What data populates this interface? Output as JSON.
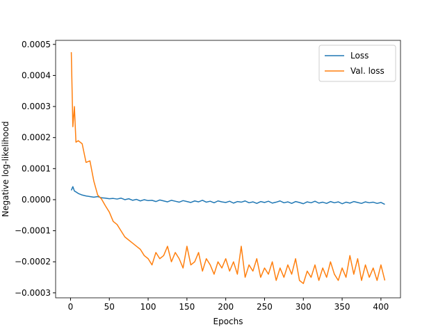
{
  "chart_data": {
    "type": "line",
    "x_label": "Epochs",
    "y_label": "Negative log-likelihood",
    "x": [
      1,
      3,
      5,
      7,
      10,
      15,
      20,
      25,
      30,
      35,
      40,
      45,
      50,
      55,
      60,
      65,
      70,
      75,
      80,
      85,
      90,
      95,
      100,
      105,
      110,
      115,
      120,
      125,
      130,
      135,
      140,
      145,
      150,
      155,
      160,
      165,
      170,
      175,
      180,
      185,
      190,
      195,
      200,
      205,
      210,
      215,
      220,
      225,
      230,
      235,
      240,
      245,
      250,
      255,
      260,
      265,
      270,
      275,
      280,
      285,
      290,
      295,
      300,
      305,
      310,
      315,
      320,
      325,
      330,
      335,
      340,
      345,
      350,
      355,
      360,
      365,
      370,
      375,
      380,
      385,
      390,
      395,
      400,
      405
    ],
    "series": [
      {
        "name": "Loss",
        "color": "#1f77b4",
        "values": [
          3e-05,
          4.2e-05,
          2.8e-05,
          2.5e-05,
          2e-05,
          1.5e-05,
          1.2e-05,
          1e-05,
          8e-06,
          1e-05,
          6e-06,
          5e-06,
          3e-06,
          4e-06,
          2e-06,
          5e-06,
          0,
          3e-06,
          -2e-06,
          1e-06,
          -4e-06,
          0,
          -3e-06,
          -2e-06,
          -6e-06,
          -1e-06,
          -4e-06,
          -7e-06,
          -2e-06,
          -5e-06,
          -8e-06,
          -3e-06,
          -6e-06,
          -9e-06,
          -4e-06,
          -7e-06,
          -2e-06,
          -8e-06,
          -5e-06,
          -1e-05,
          -4e-06,
          -7e-06,
          -9e-06,
          -5e-06,
          -1.1e-05,
          -6e-06,
          -8e-06,
          -4e-06,
          -1e-05,
          -7e-06,
          -1.2e-05,
          -6e-06,
          -9e-06,
          -5e-06,
          -1.1e-05,
          -8e-06,
          -4e-06,
          -1e-05,
          -7e-06,
          -1.2e-05,
          -6e-06,
          -9e-06,
          -1.3e-05,
          -7e-06,
          -1e-05,
          -5e-06,
          -1.1e-05,
          -8e-06,
          -1.2e-05,
          -6e-06,
          -1e-05,
          -7e-06,
          -1.3e-05,
          -8e-06,
          -1.1e-05,
          -6e-06,
          -9e-06,
          -1.2e-05,
          -7e-06,
          -1e-05,
          -8e-06,
          -1.2e-05,
          -9e-06,
          -1.5e-05
        ]
      },
      {
        "name": "Val. loss",
        "color": "#ff7f0e",
        "values": [
          0.000475,
          0.000235,
          0.0003,
          0.000185,
          0.00019,
          0.00018,
          0.00012,
          0.000125,
          6e-05,
          1.5e-05,
          2e-06,
          -2e-05,
          -4e-05,
          -7e-05,
          -8e-05,
          -0.0001,
          -0.00012,
          -0.00013,
          -0.00014,
          -0.00015,
          -0.00016,
          -0.00018,
          -0.00019,
          -0.00021,
          -0.00017,
          -0.00019,
          -0.00018,
          -0.00015,
          -0.0002,
          -0.00017,
          -0.00019,
          -0.00022,
          -0.00015,
          -0.00021,
          -0.0002,
          -0.00017,
          -0.00023,
          -0.00019,
          -0.00021,
          -0.00024,
          -0.0002,
          -0.00022,
          -0.00019,
          -0.00023,
          -0.0002,
          -0.00024,
          -0.00015,
          -0.00025,
          -0.00021,
          -0.00023,
          -0.00019,
          -0.00025,
          -0.00022,
          -0.00024,
          -0.0002,
          -0.00026,
          -0.00022,
          -0.00025,
          -0.00021,
          -0.00024,
          -0.00019,
          -0.00026,
          -0.00027,
          -0.00023,
          -0.00025,
          -0.00021,
          -0.00026,
          -0.00022,
          -0.00025,
          -0.0002,
          -0.00024,
          -0.00026,
          -0.00022,
          -0.00025,
          -0.00018,
          -0.00024,
          -0.00019,
          -0.00026,
          -0.00021,
          -0.00025,
          -0.00022,
          -0.00026,
          -0.00021,
          -0.00026
        ]
      }
    ],
    "xlim": [
      -19.2,
      425.2
    ],
    "ylim": [
      -0.000316,
      0.000513
    ],
    "xticks": [
      0,
      50,
      100,
      150,
      200,
      250,
      300,
      350,
      400
    ],
    "yticks": [
      {
        "value": -0.0003,
        "label": "−0.0003"
      },
      {
        "value": -0.0002,
        "label": "−0.0002"
      },
      {
        "value": -0.0001,
        "label": "−0.0001"
      },
      {
        "value": 0,
        "label": "0.0000"
      },
      {
        "value": 0.0001,
        "label": "0.0001"
      },
      {
        "value": 0.0002,
        "label": "0.0002"
      },
      {
        "value": 0.0003,
        "label": "0.0003"
      },
      {
        "value": 0.0004,
        "label": "0.0004"
      },
      {
        "value": 0.0005,
        "label": "0.0005"
      }
    ],
    "legend": "upper right",
    "grid": false
  }
}
